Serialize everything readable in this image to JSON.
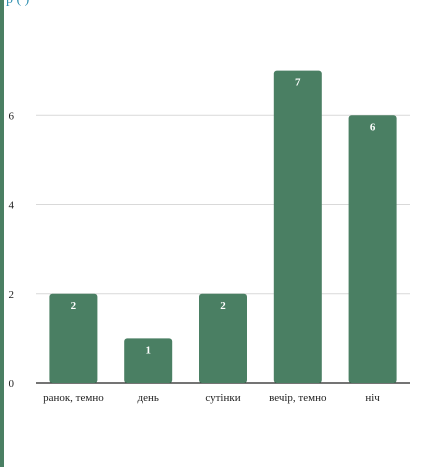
{
  "header": {
    "caption": "p                    (    )"
  },
  "chart_data": {
    "type": "bar",
    "categories": [
      "ранок, темно",
      "день",
      "сутінки",
      "вечір, темно",
      "ніч"
    ],
    "values": [
      2,
      1,
      2,
      7,
      6
    ],
    "ylim": [
      0,
      8
    ],
    "yticks": [
      0,
      2,
      4,
      6
    ],
    "grid": true,
    "bar_color": "#4a7f63",
    "grid_color": "#d9d9d9",
    "accent_color": "#4a7f63"
  }
}
